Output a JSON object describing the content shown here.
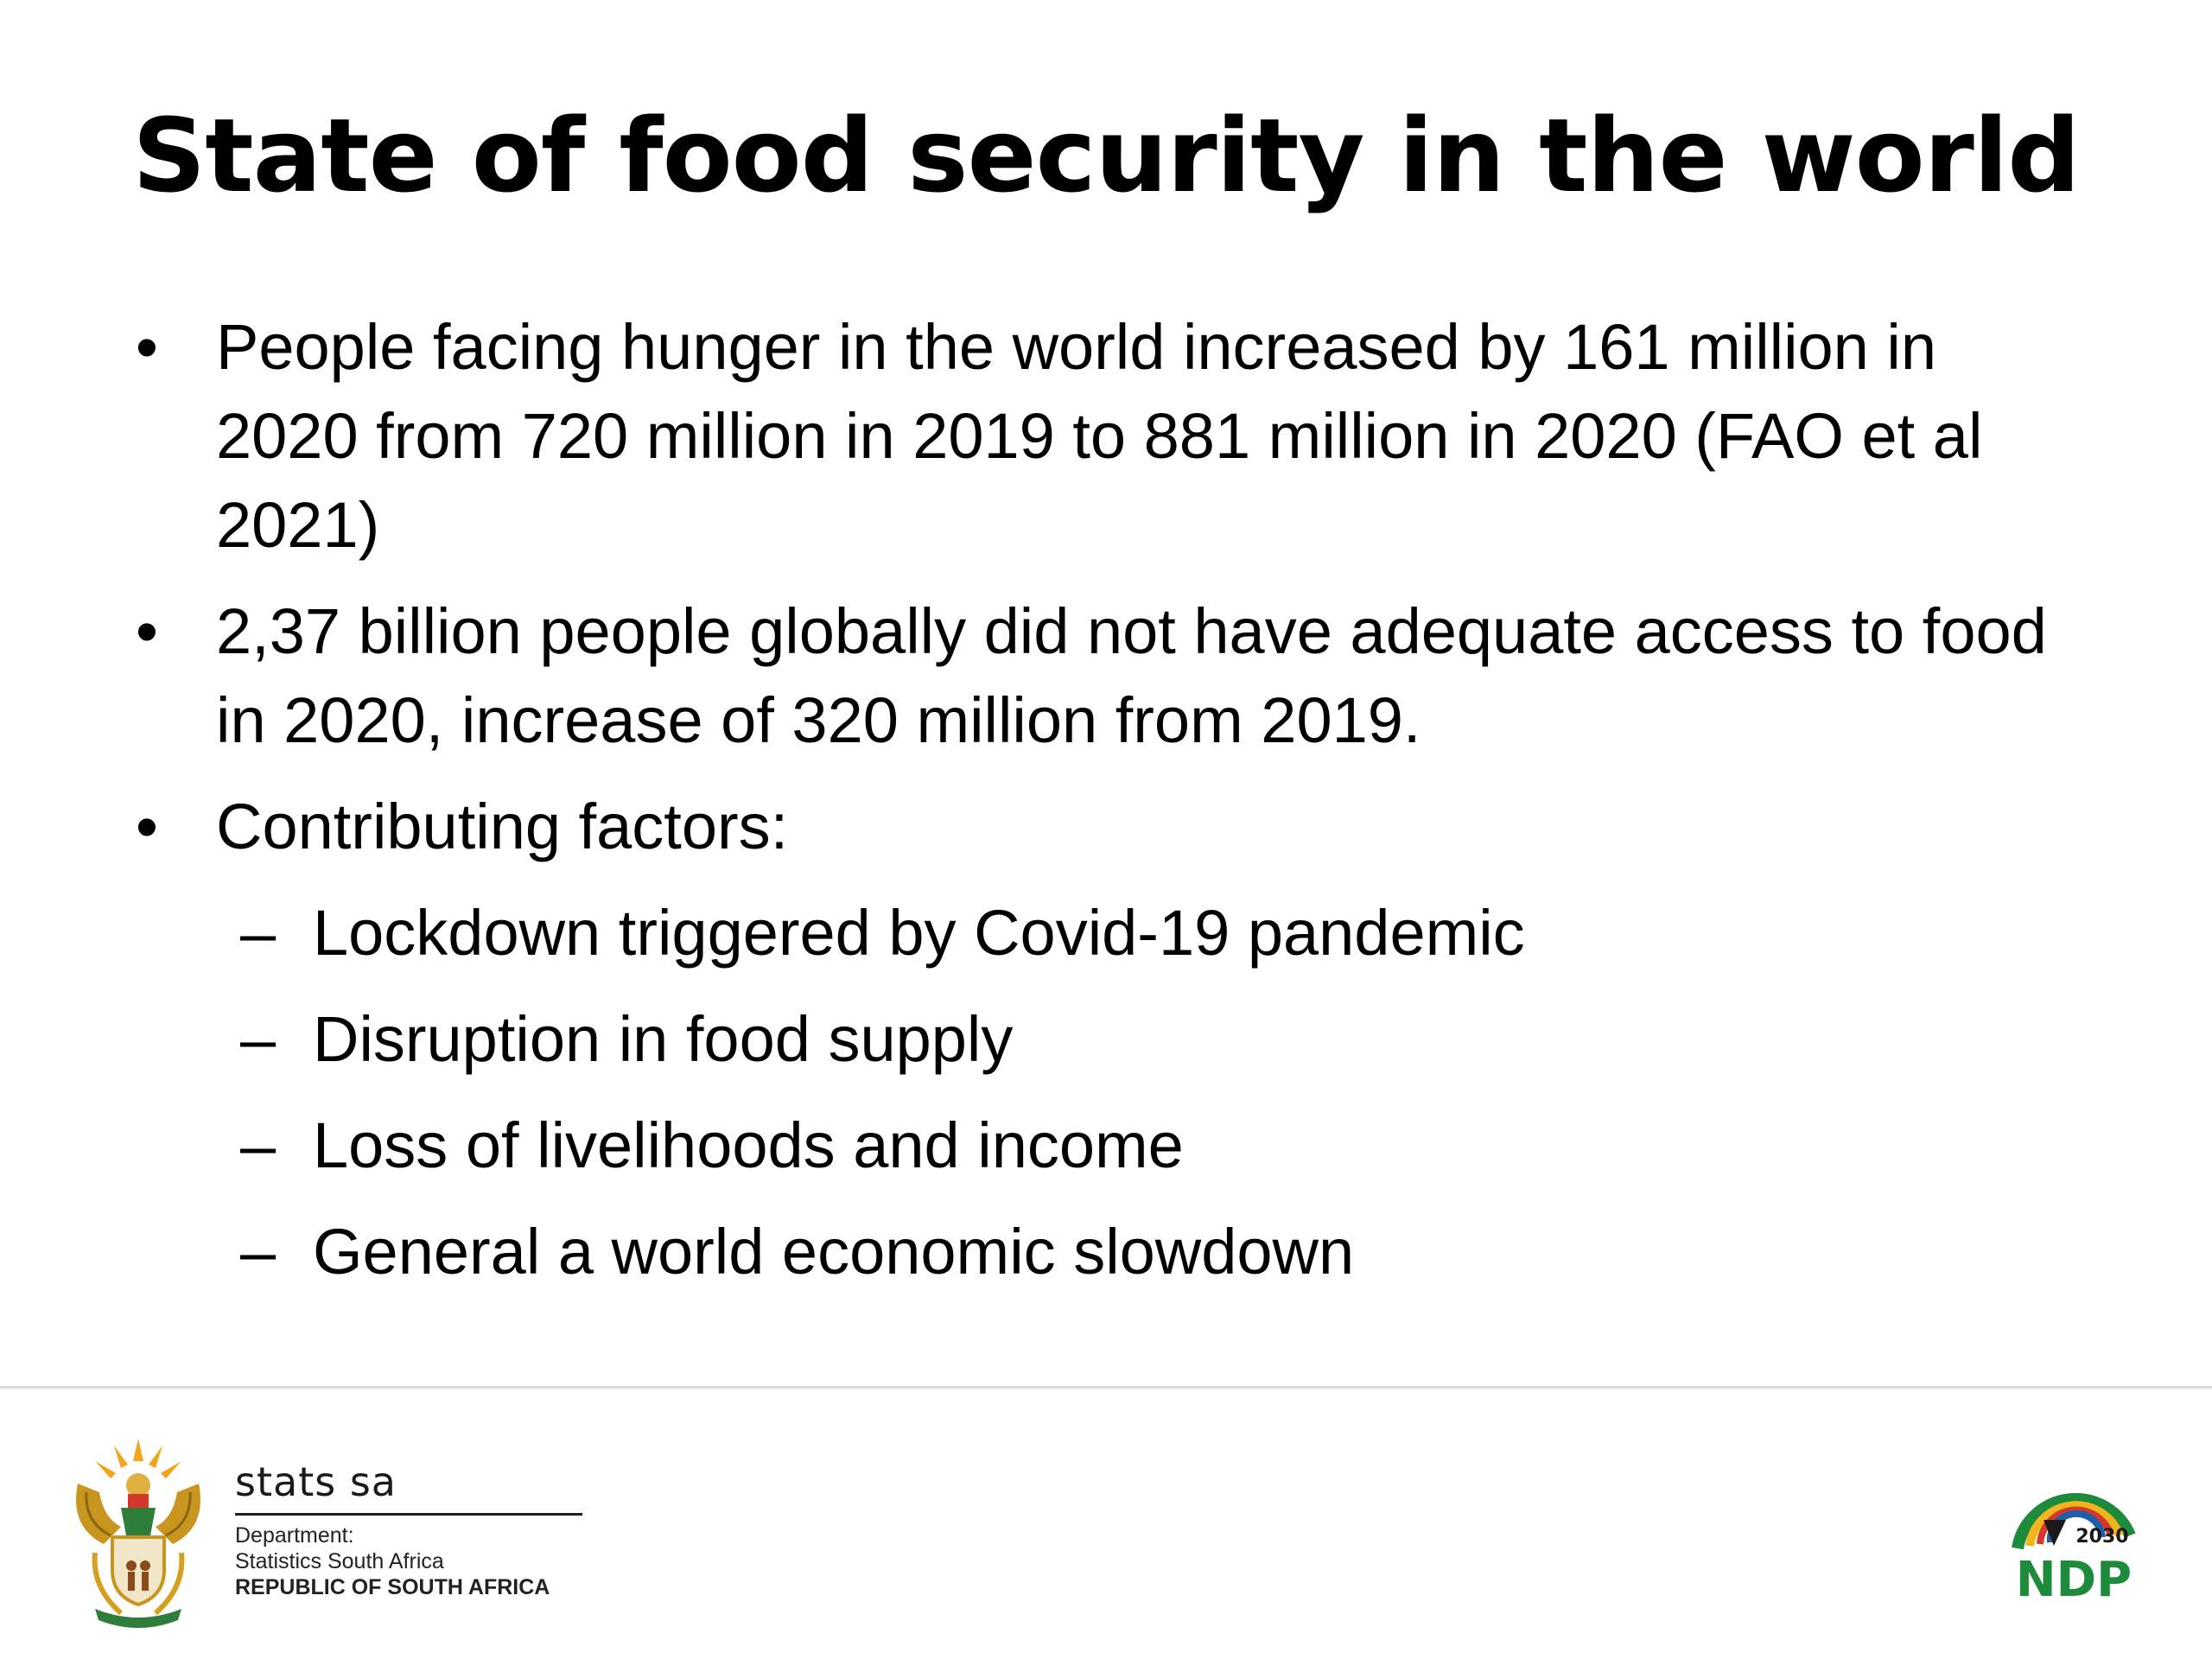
{
  "slide": {
    "title": "State of food security in the world",
    "bullets": [
      {
        "marker": "•",
        "text": "People facing hunger in the world increased by 161 million in 2020  from 720 million in 2019 to 881 million in 2020 (FAO et al 2021)"
      },
      {
        "marker": "•",
        "text": "2,37 billion people globally did not have adequate access to food in 2020, increase of 320 million from 2019."
      },
      {
        "marker": "•",
        "text": "Contributing factors:"
      }
    ],
    "sub_bullets": [
      {
        "marker": "–",
        "text": "Lockdown triggered by Covid-19 pandemic"
      },
      {
        "marker": "–",
        "text": "Disruption in food supply"
      },
      {
        "marker": "–",
        "text": "Loss of livelihoods and income"
      },
      {
        "marker": "–",
        "text": "General a world economic slowdown"
      }
    ]
  },
  "footer": {
    "org_name": "stats sa",
    "dept_label": "Department:",
    "dept_name": "Statistics South Africa",
    "country": "REPUBLIC OF SOUTH AFRICA",
    "crest_icon": "coat-of-arms-icon",
    "ndp_logo": {
      "year": "2030",
      "text": "NDP",
      "colors": {
        "green": "#1e8a3c",
        "gold": "#f2b51c",
        "red": "#d7372a",
        "blue": "#1f5fa8",
        "black": "#1a1a1a"
      }
    }
  }
}
